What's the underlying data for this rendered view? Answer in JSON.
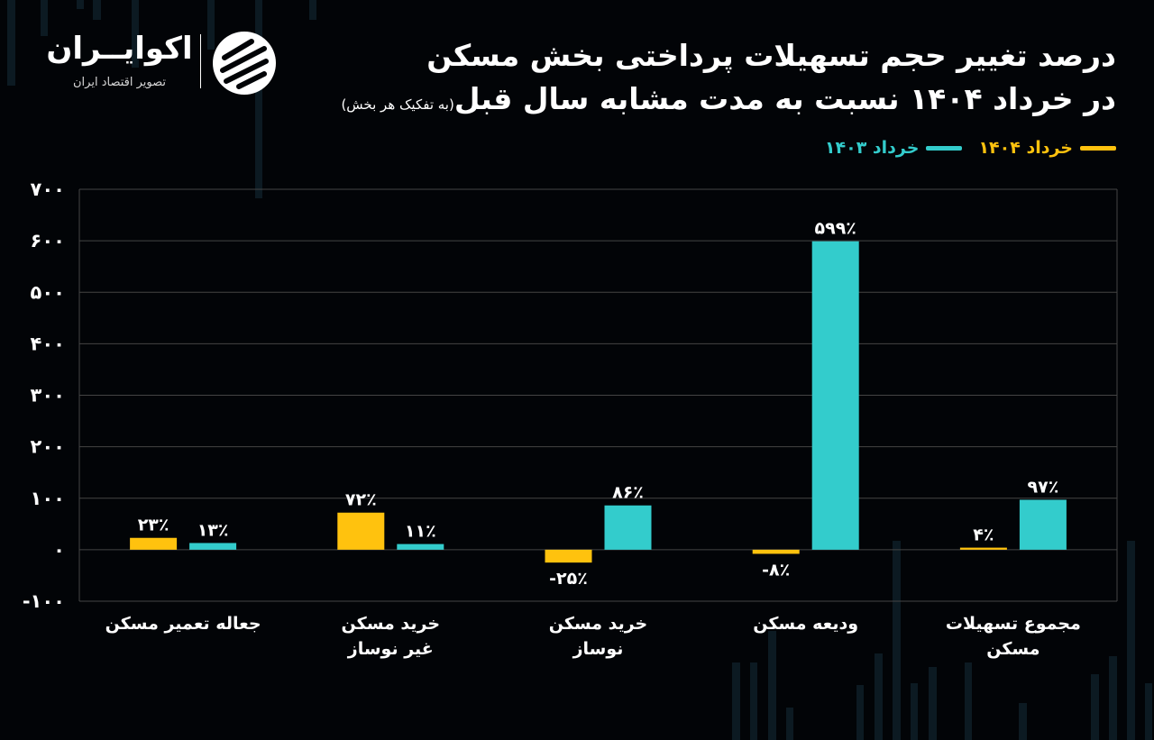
{
  "title": {
    "line1": "درصد تغییر حجم تسهیلات پرداختی بخش مسکن",
    "line2": "در خرداد ۱۴۰۴ نسبت به مدت مشابه سال قبل",
    "sub": "(به تفکیک هر بخش)"
  },
  "logo": {
    "name": "اکوایــران",
    "tagline": "تصویر اقتصاد ایران"
  },
  "colors": {
    "background": "#020407",
    "series_1404": "#FFC20E",
    "series_1403": "#33CCCC",
    "grid": "#444444"
  },
  "chart_data": {
    "type": "bar",
    "categories": [
      [
        "جعاله تعمیر مسکن"
      ],
      [
        "خرید مسکن",
        "غیر نوساز"
      ],
      [
        "خرید مسکن",
        "نوساز"
      ],
      [
        "ودیعه مسکن"
      ],
      [
        "مجموع تسهیلات",
        "مسکن"
      ]
    ],
    "series": [
      {
        "name": "خرداد ۱۴۰۴",
        "color": "#FFC20E",
        "values": [
          23,
          72,
          -25,
          -8,
          4
        ],
        "labels": [
          "۲۳٪",
          "۷۲٪",
          "-۲۵٪",
          "-۸٪",
          "۴٪"
        ]
      },
      {
        "name": "خرداد ۱۴۰۳",
        "color": "#33CCCC",
        "values": [
          13,
          11,
          86,
          599,
          97
        ],
        "labels": [
          "۱۳٪",
          "۱۱٪",
          "۸۶٪",
          "۵۹۹٪",
          "۹۷٪"
        ]
      }
    ],
    "ylim": [
      -100,
      700
    ],
    "yticks": [
      -100,
      0,
      100,
      200,
      300,
      400,
      500,
      600,
      700
    ],
    "ytick_labels": [
      "-۱۰۰",
      "۰",
      "۱۰۰",
      "۲۰۰",
      "۳۰۰",
      "۴۰۰",
      "۵۰۰",
      "۶۰۰",
      "۷۰۰"
    ],
    "grid": true,
    "legend_position": "top-right"
  }
}
